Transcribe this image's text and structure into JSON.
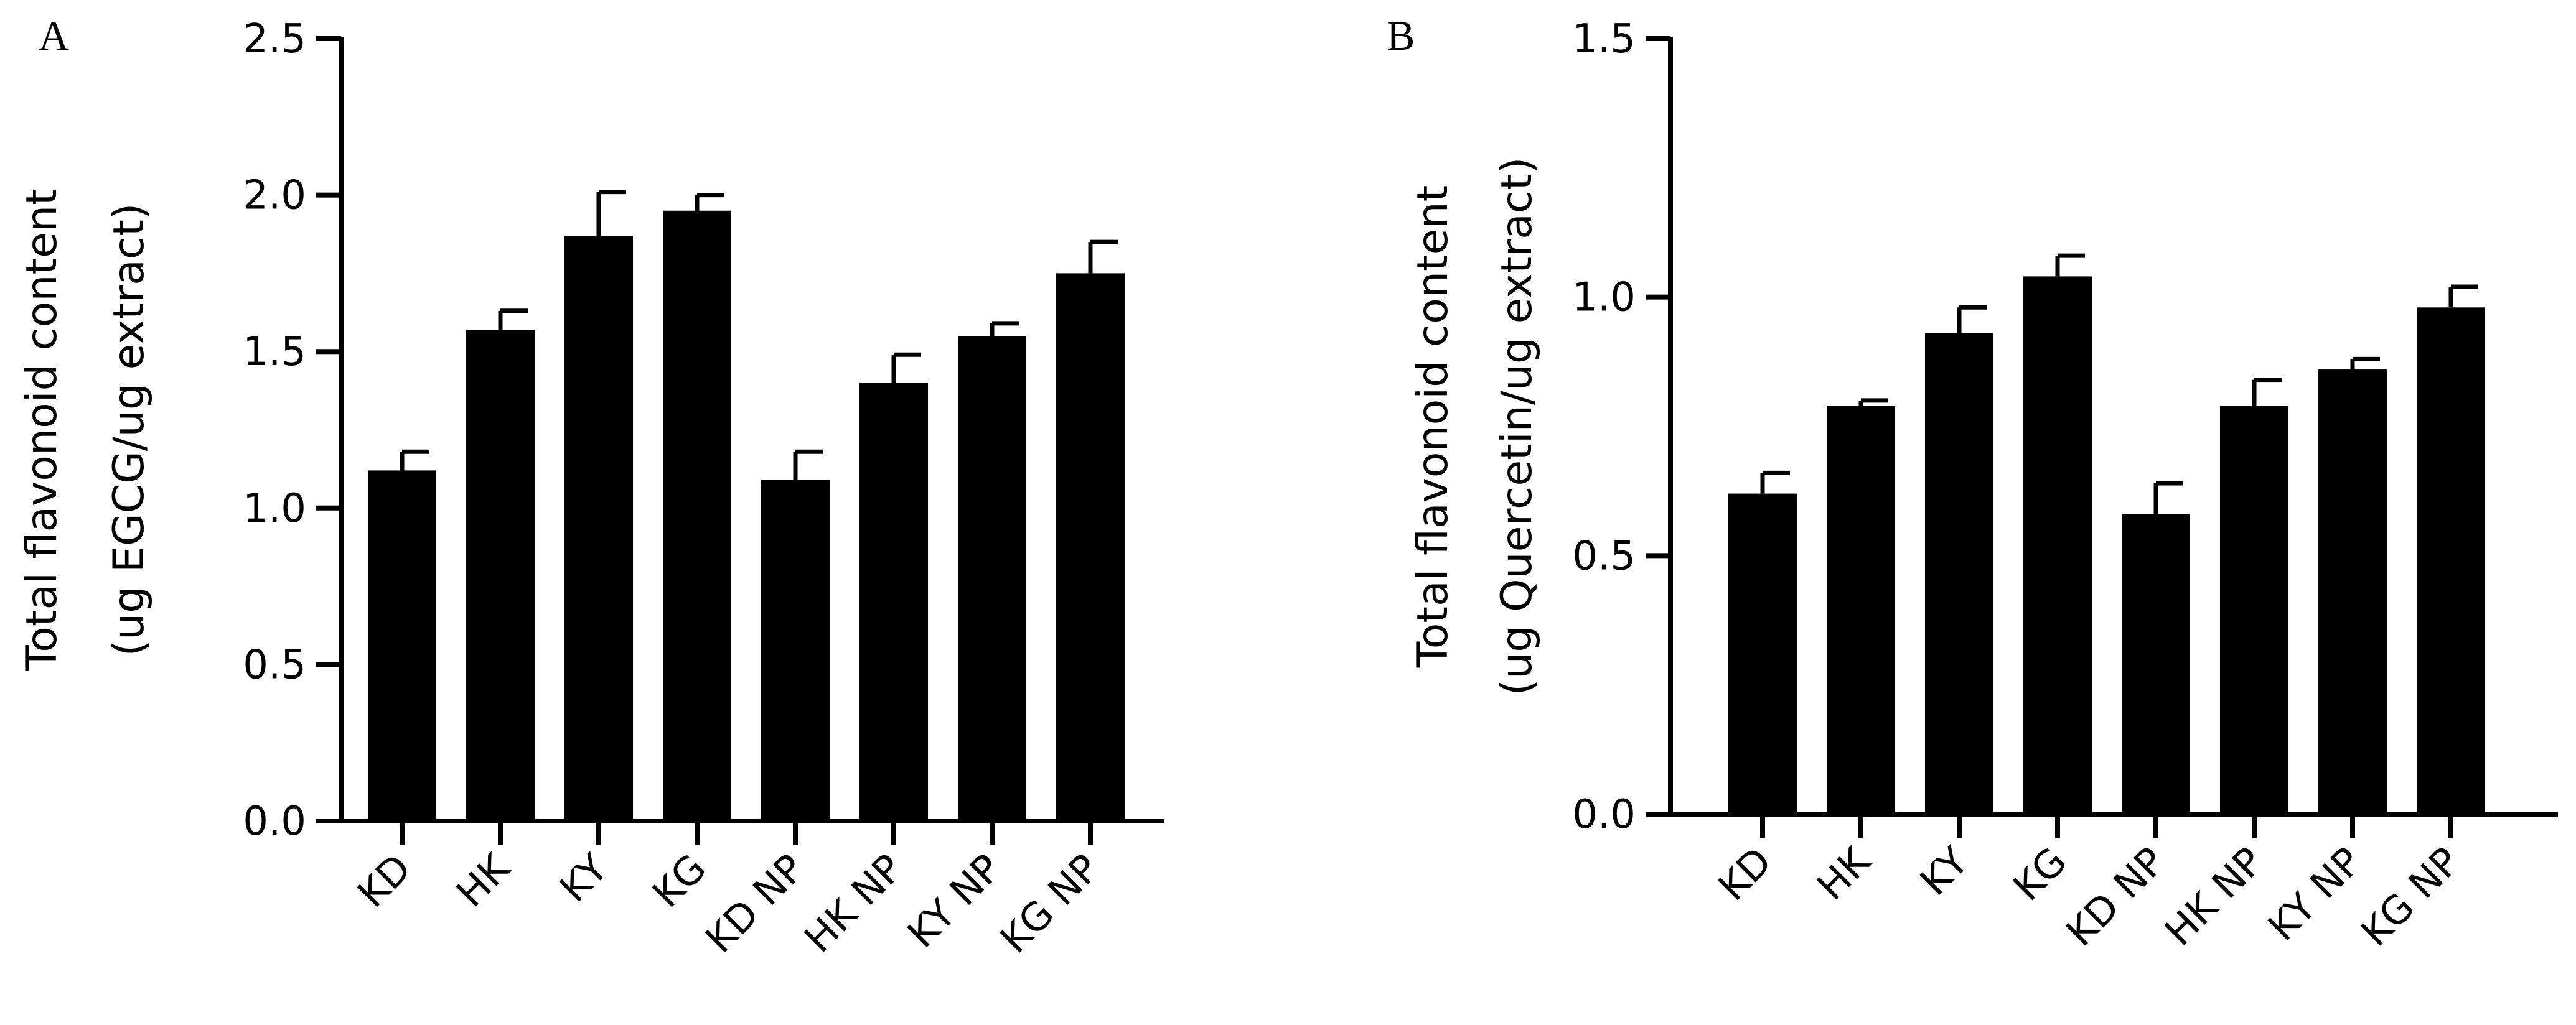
{
  "chart_data": [
    {
      "panel": "A",
      "type": "bar",
      "categories": [
        "KD",
        "HK",
        "KY",
        "KG",
        "KD NP",
        "HK NP",
        "KY NP",
        "KG NP"
      ],
      "values": [
        1.12,
        1.57,
        1.87,
        1.95,
        1.09,
        1.4,
        1.55,
        1.75
      ],
      "errors": [
        0.06,
        0.06,
        0.14,
        0.05,
        0.09,
        0.09,
        0.04,
        0.1
      ],
      "ylabel_line1": "Total flavonoid content",
      "ylabel_line2": "(ug EGCG/ug extract)",
      "ylim": [
        0,
        2.5
      ],
      "yticks": [
        0.0,
        0.5,
        1.0,
        1.5,
        2.0,
        2.5
      ],
      "ytick_labels": [
        "0.0",
        "0.5",
        "1.0",
        "1.5",
        "2.0",
        "2.5"
      ],
      "bar_color": "#000000"
    },
    {
      "panel": "B",
      "type": "bar",
      "categories": [
        "KD",
        "HK",
        "KY",
        "KG",
        "KD NP",
        "HK NP",
        "KY NP",
        "KG NP"
      ],
      "values": [
        0.62,
        0.79,
        0.93,
        1.04,
        0.58,
        0.79,
        0.86,
        0.98
      ],
      "errors": [
        0.04,
        0.01,
        0.05,
        0.04,
        0.06,
        0.05,
        0.02,
        0.04
      ],
      "ylabel_line1": "Total flavonoid content",
      "ylabel_line2": "(ug Quercetin/ug extract)",
      "ylim": [
        0,
        1.5
      ],
      "yticks": [
        0.0,
        0.5,
        1.0,
        1.5
      ],
      "ytick_labels": [
        "0.0",
        "0.5",
        "1.0",
        "1.5"
      ],
      "bar_color": "#000000"
    }
  ]
}
